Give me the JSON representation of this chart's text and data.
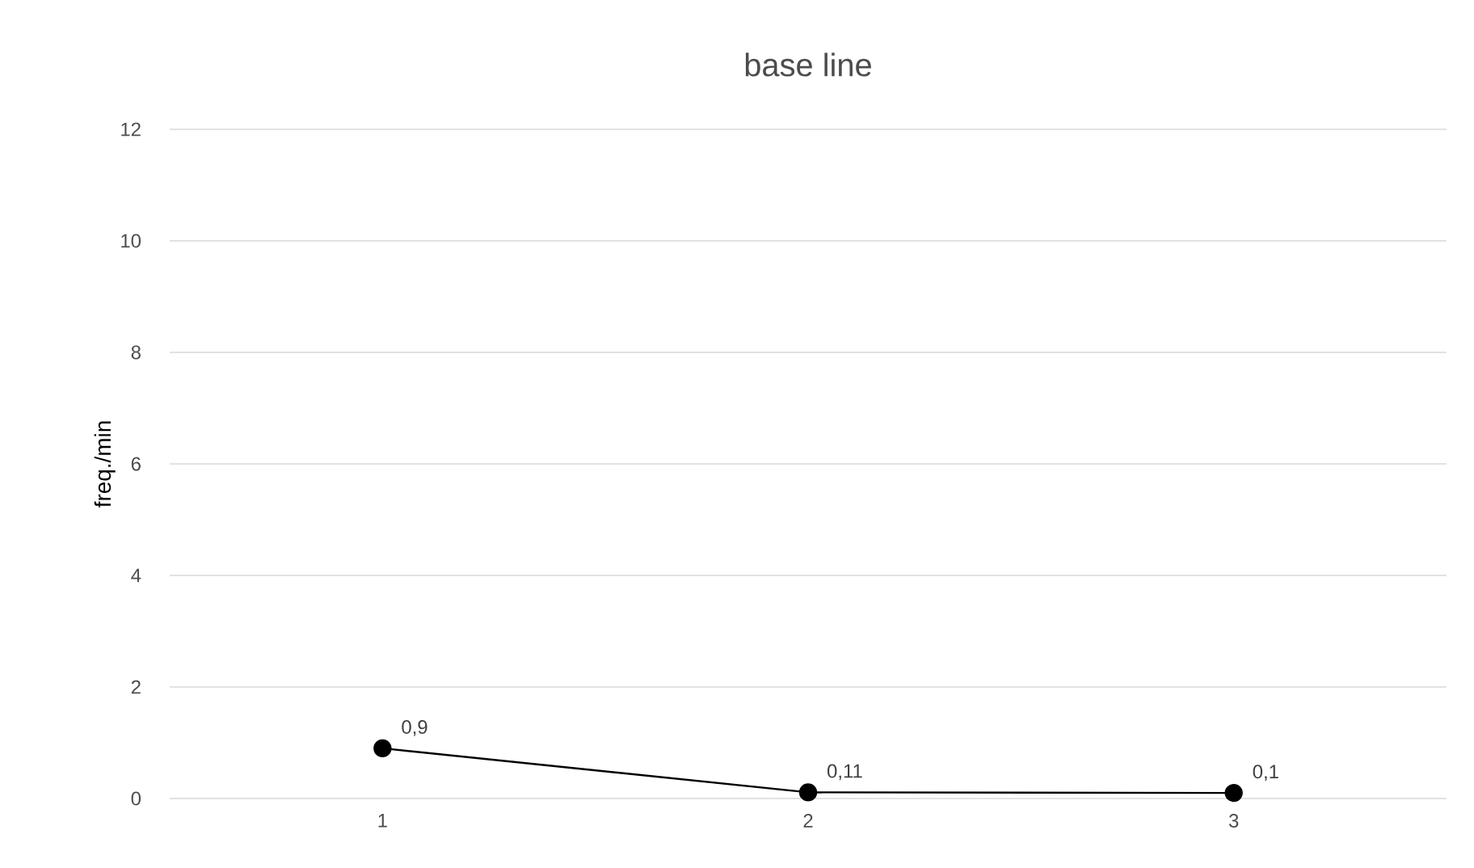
{
  "chart_data": {
    "type": "line",
    "title": "base line",
    "ylabel": "freq./min",
    "categories": [
      "1",
      "2",
      "3"
    ],
    "series": [
      {
        "color": "#000000",
        "values": [
          0.9,
          0.11,
          0.1
        ],
        "value_labels": [
          "0,9",
          "0,11",
          "0,1"
        ]
      }
    ],
    "ylim": [
      0,
      12
    ],
    "yticks": [
      0,
      2,
      4,
      6,
      8,
      10,
      12
    ],
    "grid": "y",
    "marker": "circle",
    "line_style": "solid"
  }
}
